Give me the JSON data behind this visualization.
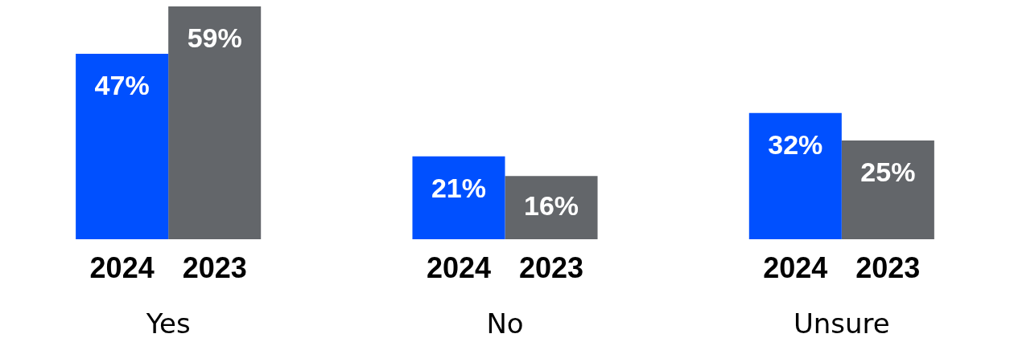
{
  "chart_data": {
    "type": "bar",
    "categories": [
      "Yes",
      "No",
      "Unsure"
    ],
    "series": [
      {
        "name": "2024",
        "color": "#0050ff",
        "values": [
          47,
          21,
          32
        ],
        "value_labels": [
          "47%",
          "21%",
          "32%"
        ]
      },
      {
        "name": "2023",
        "color": "#63666a",
        "values": [
          59,
          16,
          25
        ],
        "value_labels": [
          "59%",
          "16%",
          "25%"
        ]
      }
    ],
    "grid": false,
    "legend": false
  }
}
